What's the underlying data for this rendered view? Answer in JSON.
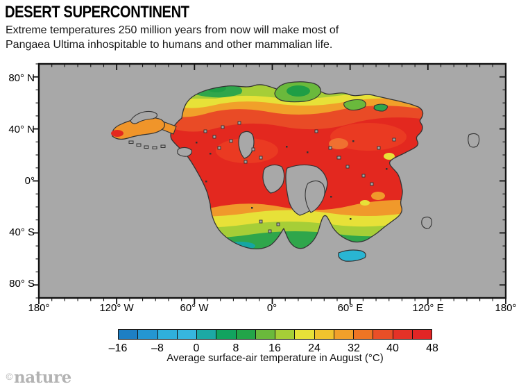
{
  "header": {
    "title": "DESERT SUPERCONTINENT",
    "subtitle_line1": "Extreme temperatures 250 million years from now will make most of",
    "subtitle_line2": "Pangaea Ultima inhospitable to humans and other mammalian life."
  },
  "map": {
    "lat_labels": [
      "80° N",
      "40° N",
      "0°",
      "40° S",
      "80° S"
    ],
    "lon_labels": [
      "180°",
      "120° W",
      "60° W",
      "0°",
      "60° E",
      "120° E",
      "180°"
    ],
    "ocean_color": "#a8a8a8",
    "coastline_color": "#333333"
  },
  "colorbar": {
    "tick_labels": [
      "–16",
      "–8",
      "0",
      "8",
      "16",
      "24",
      "32",
      "40",
      "48"
    ],
    "segment_colors": [
      "#1d7fc4",
      "#2496d2",
      "#2fb0dc",
      "#36b6de",
      "#1ca9a5",
      "#11a35f",
      "#22a549",
      "#6ab93c",
      "#a6ce37",
      "#e7e138",
      "#f0c32e",
      "#f1a02a",
      "#ee7524",
      "#e94f27",
      "#e43227",
      "#e22525"
    ],
    "caption": "Average surface-air temperature in August (°C)"
  },
  "footer": {
    "copyright": "©",
    "credit": "nature"
  },
  "chart_data": {
    "type": "heatmap",
    "title": "DESERT SUPERCONTINENT",
    "subtitle": "Extreme temperatures 250 million years from now will make most of Pangaea Ultima inhospitable to humans and other mammalian life.",
    "variable": "Average surface-air temperature in August (°C)",
    "x_axis": {
      "label": "longitude",
      "tick_labels": [
        "180°",
        "120° W",
        "60° W",
        "0°",
        "60° E",
        "120° E",
        "180°"
      ],
      "range_deg": [
        -180,
        180
      ],
      "minor_tick_step_deg": 10,
      "major_tick_step_deg": 60
    },
    "y_axis": {
      "label": "latitude",
      "tick_labels": [
        "80° N",
        "40° N",
        "0°",
        "40° S",
        "80° S"
      ],
      "range_deg": [
        -90,
        90
      ],
      "minor_tick_step_deg": 10,
      "major_tick_step_deg": 40
    },
    "colorbar": {
      "min": -16,
      "max": 48,
      "segment_step_c": 4,
      "tick_values": [
        -16,
        -8,
        0,
        8,
        16,
        24,
        32,
        40,
        48
      ],
      "colors": [
        "#1d7fc4",
        "#2496d2",
        "#2fb0dc",
        "#36b6de",
        "#1ca9a5",
        "#11a35f",
        "#22a549",
        "#6ab93c",
        "#a6ce37",
        "#e7e138",
        "#f0c32e",
        "#f1a02a",
        "#ee7524",
        "#e94f27",
        "#e43227",
        "#e22525"
      ]
    },
    "regions": [
      {
        "area": "supercontinent interior (0–40° N, most of landmass)",
        "temp_c": "40–48"
      },
      {
        "area": "northern coastal band (~55–70° N)",
        "temp_c": "8–32, green to orange gradient"
      },
      {
        "area": "southwestern and southeastern coasts (~35–55° S)",
        "temp_c": "8–32, green to orange gradient"
      },
      {
        "area": "far southern island (~60° S)",
        "temp_c": "-8–0 (cyan)"
      },
      {
        "area": "western peninsula (~35° N)",
        "temp_c": "28–40"
      },
      {
        "area": "ocean and inland seas",
        "temp_c": "no data (gray)"
      }
    ],
    "legend_position": "bottom",
    "grid": false
  }
}
